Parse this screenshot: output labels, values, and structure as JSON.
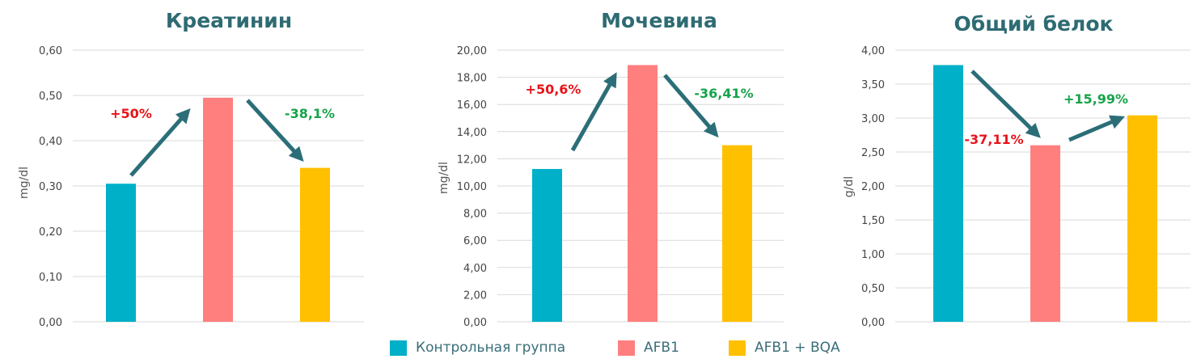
{
  "colors": {
    "control": "#00b0c8",
    "afb1": "#ff7f7f",
    "afb1_bqa": "#ffc000",
    "title": "#2e6b73",
    "arrow": "#2b6e78",
    "increase": "#e8131a",
    "decrease": "#16a34a",
    "grid": "#d9d9d9"
  },
  "legend": [
    {
      "label": "Контрольная группа",
      "color_key": "control"
    },
    {
      "label": "AFB1",
      "color_key": "afb1"
    },
    {
      "label": "AFB1 + BQA",
      "color_key": "afb1_bqa"
    }
  ],
  "chart_data": [
    {
      "type": "bar",
      "title": "Креатинин",
      "ylabel": "mg/dl",
      "categories": [
        "Контрольная группа",
        "AFB1",
        "AFB1 + BQA"
      ],
      "values": [
        0.305,
        0.495,
        0.34
      ],
      "ylim": [
        0,
        0.6
      ],
      "yticks": [
        "0,00",
        "0,10",
        "0,20",
        "0,30",
        "0,40",
        "0,50",
        "0,60"
      ],
      "grid": true,
      "annotations": [
        {
          "text": "+50%",
          "kind": "increase",
          "between": [
            0,
            1
          ]
        },
        {
          "text": "-38,1%",
          "kind": "decrease",
          "between": [
            1,
            2
          ]
        }
      ]
    },
    {
      "type": "bar",
      "title": "Мочевина",
      "ylabel": "mg/dl",
      "categories": [
        "Контрольная группа",
        "AFB1",
        "AFB1 + BQA"
      ],
      "values": [
        11.25,
        18.9,
        13.0
      ],
      "ylim": [
        0,
        20
      ],
      "yticks": [
        "0,00",
        "2,00",
        "4,00",
        "6,00",
        "8,00",
        "10,00",
        "12,00",
        "14,00",
        "16,00",
        "18,00",
        "20,00"
      ],
      "grid": true,
      "annotations": [
        {
          "text": "+50,6%",
          "kind": "increase",
          "between": [
            0,
            1
          ]
        },
        {
          "text": "-36,41%",
          "kind": "decrease",
          "between": [
            1,
            2
          ]
        }
      ]
    },
    {
      "type": "bar",
      "title": "Общий белок",
      "ylabel": "g/dl",
      "categories": [
        "Контрольная группа",
        "AFB1",
        "AFB1 + BQA"
      ],
      "values": [
        3.78,
        2.6,
        3.04
      ],
      "ylim": [
        0,
        4
      ],
      "yticks": [
        "0,00",
        "0,50",
        "1,00",
        "1,50",
        "2,00",
        "2,50",
        "3,00",
        "3,50",
        "4,00"
      ],
      "grid": true,
      "annotations": [
        {
          "text": "-37,11%",
          "kind": "increase",
          "between": [
            0,
            1
          ]
        },
        {
          "text": "+15,99%",
          "kind": "decrease",
          "between": [
            1,
            2
          ]
        }
      ]
    }
  ]
}
